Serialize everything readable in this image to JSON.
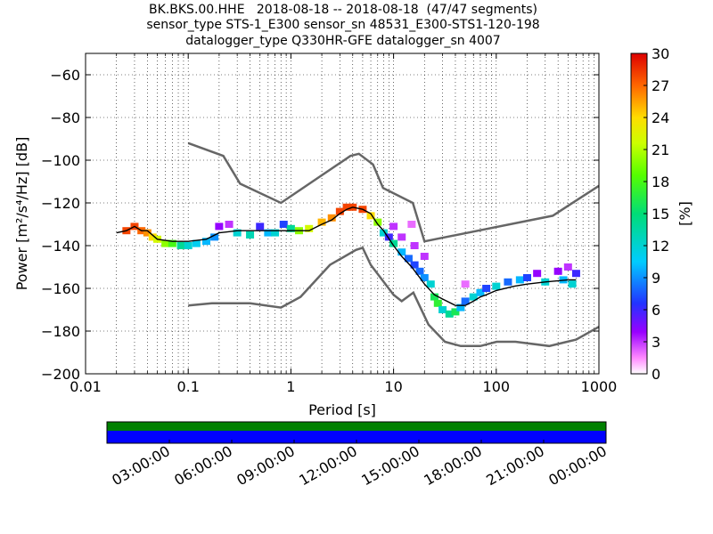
{
  "title_lines": [
    "BK.BKS.00.HHE   2018-08-18 -- 2018-08-18  (47/47 segments)",
    "sensor_type STS-1_E300 sensor_sn 48531_E300-STS1-120-198",
    "datalogger_type Q330HR-GFE datalogger_sn 4007"
  ],
  "chart_data": [
    {
      "type": "heatmap",
      "xlabel": "Period [s]",
      "ylabel": "Power [m²/s⁴/Hz] [dB]",
      "x_scale": "log",
      "xlim": [
        0.01,
        1000
      ],
      "ylim": [
        -200,
        -50
      ],
      "x_ticks": [
        0.01,
        0.1,
        1,
        10,
        100,
        1000
      ],
      "x_tick_labels": [
        "0.01",
        "0.1",
        "1",
        "10",
        "100",
        "1000"
      ],
      "y_ticks": [
        -200,
        -180,
        -160,
        -140,
        -120,
        -100,
        -80,
        -60
      ],
      "y_tick_labels": [
        "−200",
        "−180",
        "−160",
        "−140",
        "−120",
        "−100",
        "−80",
        "−60"
      ],
      "grid": true,
      "colorbar": {
        "label": "[%]",
        "range": [
          0,
          30
        ],
        "ticks": [
          0,
          3,
          6,
          9,
          12,
          15,
          18,
          21,
          24,
          27,
          30
        ],
        "tick_labels": [
          "0",
          "3",
          "6",
          "9",
          "12",
          "15",
          "18",
          "21",
          "24",
          "27",
          "30"
        ],
        "colormap": "pqlx"
      },
      "mode_curve": {
        "x": [
          0.02,
          0.025,
          0.03,
          0.035,
          0.04,
          0.05,
          0.07,
          0.1,
          0.15,
          0.2,
          0.3,
          0.5,
          0.7,
          1.0,
          1.5,
          2,
          2.5,
          3,
          3.5,
          4,
          5,
          6,
          7,
          8,
          10,
          12,
          15,
          18,
          20,
          25,
          30,
          40,
          50,
          60,
          70,
          80,
          100,
          150,
          200,
          300,
          500,
          600
        ],
        "y": [
          -134,
          -133,
          -131,
          -133,
          -133,
          -137,
          -138,
          -138,
          -137,
          -134,
          -133,
          -133,
          -133,
          -133,
          -133,
          -130,
          -128,
          -125,
          -123,
          -122,
          -123,
          -125,
          -130,
          -133,
          -140,
          -145,
          -150,
          -155,
          -158,
          -163,
          -165,
          -168,
          -168,
          -166,
          -164,
          -163,
          -161,
          -159,
          -158,
          -157,
          -156,
          -156
        ]
      },
      "nhnm": {
        "x": [
          0.1,
          0.22,
          0.32,
          0.8,
          3.8,
          4.6,
          6.3,
          7.9,
          15.4,
          20,
          354.8,
          1000
        ],
        "y": [
          -92,
          -98,
          -111,
          -120,
          -98,
          -97,
          -102,
          -113,
          -120,
          -138,
          -126,
          -112
        ]
      },
      "nlnm": {
        "x": [
          0.1,
          0.17,
          0.4,
          0.8,
          1.24,
          2.4,
          4.3,
          5,
          6,
          10,
          12,
          15.6,
          21.9,
          31.6,
          45,
          70,
          101,
          154,
          328,
          600,
          1000
        ],
        "y": [
          -168,
          -167,
          -167,
          -169,
          -164,
          -149,
          -142,
          -141,
          -149,
          -163,
          -166,
          -162,
          -177,
          -185,
          -187,
          -187,
          -185,
          -185,
          -187,
          -184,
          -178
        ]
      },
      "density_cells": [
        {
          "x": 0.025,
          "y": -133,
          "p": 28
        },
        {
          "x": 0.03,
          "y": -131,
          "p": 28
        },
        {
          "x": 0.035,
          "y": -133,
          "p": 27
        },
        {
          "x": 0.04,
          "y": -134,
          "p": 26
        },
        {
          "x": 0.045,
          "y": -136,
          "p": 24
        },
        {
          "x": 0.05,
          "y": -137,
          "p": 22
        },
        {
          "x": 0.06,
          "y": -139,
          "p": 20
        },
        {
          "x": 0.07,
          "y": -139,
          "p": 18
        },
        {
          "x": 0.085,
          "y": -140,
          "p": 14
        },
        {
          "x": 0.1,
          "y": -140,
          "p": 12
        },
        {
          "x": 0.12,
          "y": -139,
          "p": 11
        },
        {
          "x": 0.15,
          "y": -138,
          "p": 10
        },
        {
          "x": 0.18,
          "y": -136,
          "p": 9
        },
        {
          "x": 0.2,
          "y": -131,
          "p": 4
        },
        {
          "x": 0.25,
          "y": -130,
          "p": 3
        },
        {
          "x": 0.3,
          "y": -134,
          "p": 12
        },
        {
          "x": 0.4,
          "y": -135,
          "p": 13
        },
        {
          "x": 0.5,
          "y": -131,
          "p": 6
        },
        {
          "x": 0.6,
          "y": -134,
          "p": 10
        },
        {
          "x": 0.7,
          "y": -134,
          "p": 12
        },
        {
          "x": 0.85,
          "y": -130,
          "p": 7
        },
        {
          "x": 1.0,
          "y": -132,
          "p": 14
        },
        {
          "x": 1.2,
          "y": -133,
          "p": 20
        },
        {
          "x": 1.5,
          "y": -132,
          "p": 22
        },
        {
          "x": 2.0,
          "y": -129,
          "p": 25
        },
        {
          "x": 2.5,
          "y": -127,
          "p": 26
        },
        {
          "x": 3.0,
          "y": -124,
          "p": 28
        },
        {
          "x": 3.5,
          "y": -122,
          "p": 28
        },
        {
          "x": 4.0,
          "y": -122,
          "p": 28
        },
        {
          "x": 5.0,
          "y": -123,
          "p": 28
        },
        {
          "x": 6.0,
          "y": -126,
          "p": 24
        },
        {
          "x": 7.0,
          "y": -129,
          "p": 20
        },
        {
          "x": 8.0,
          "y": -134,
          "p": 12
        },
        {
          "x": 9.0,
          "y": -136,
          "p": 6
        },
        {
          "x": 10,
          "y": -139,
          "p": 14
        },
        {
          "x": 10,
          "y": -131,
          "p": 3
        },
        {
          "x": 12,
          "y": -143,
          "p": 10
        },
        {
          "x": 12,
          "y": -136,
          "p": 3
        },
        {
          "x": 14,
          "y": -146,
          "p": 8
        },
        {
          "x": 15,
          "y": -130,
          "p": 2
        },
        {
          "x": 16,
          "y": -149,
          "p": 7
        },
        {
          "x": 16,
          "y": -140,
          "p": 3
        },
        {
          "x": 18,
          "y": -152,
          "p": 8
        },
        {
          "x": 20,
          "y": -155,
          "p": 9
        },
        {
          "x": 20,
          "y": -145,
          "p": 3
        },
        {
          "x": 23,
          "y": -158,
          "p": 12
        },
        {
          "x": 25,
          "y": -164,
          "p": 16
        },
        {
          "x": 27,
          "y": -167,
          "p": 17
        },
        {
          "x": 30,
          "y": -170,
          "p": 12
        },
        {
          "x": 35,
          "y": -172,
          "p": 14
        },
        {
          "x": 40,
          "y": -171,
          "p": 16
        },
        {
          "x": 45,
          "y": -169,
          "p": 10
        },
        {
          "x": 50,
          "y": -166,
          "p": 8
        },
        {
          "x": 50,
          "y": -158,
          "p": 2
        },
        {
          "x": 60,
          "y": -164,
          "p": 12
        },
        {
          "x": 70,
          "y": -162,
          "p": 10
        },
        {
          "x": 80,
          "y": -160,
          "p": 7
        },
        {
          "x": 100,
          "y": -159,
          "p": 12
        },
        {
          "x": 130,
          "y": -157,
          "p": 8
        },
        {
          "x": 170,
          "y": -156,
          "p": 10
        },
        {
          "x": 200,
          "y": -155,
          "p": 7
        },
        {
          "x": 250,
          "y": -153,
          "p": 4
        },
        {
          "x": 300,
          "y": -157,
          "p": 12
        },
        {
          "x": 400,
          "y": -152,
          "p": 4
        },
        {
          "x": 450,
          "y": -156,
          "p": 10
        },
        {
          "x": 500,
          "y": -150,
          "p": 3
        },
        {
          "x": 550,
          "y": -158,
          "p": 12
        },
        {
          "x": 600,
          "y": -153,
          "p": 6
        }
      ]
    },
    {
      "type": "timeline",
      "rows": [
        {
          "color": "#008000"
        },
        {
          "color": "#0000ff"
        }
      ],
      "x_tick_labels": [
        "03:00:00",
        "06:00:00",
        "09:00:00",
        "12:00:00",
        "15:00:00",
        "18:00:00",
        "21:00:00",
        "00:00:00"
      ]
    }
  ]
}
